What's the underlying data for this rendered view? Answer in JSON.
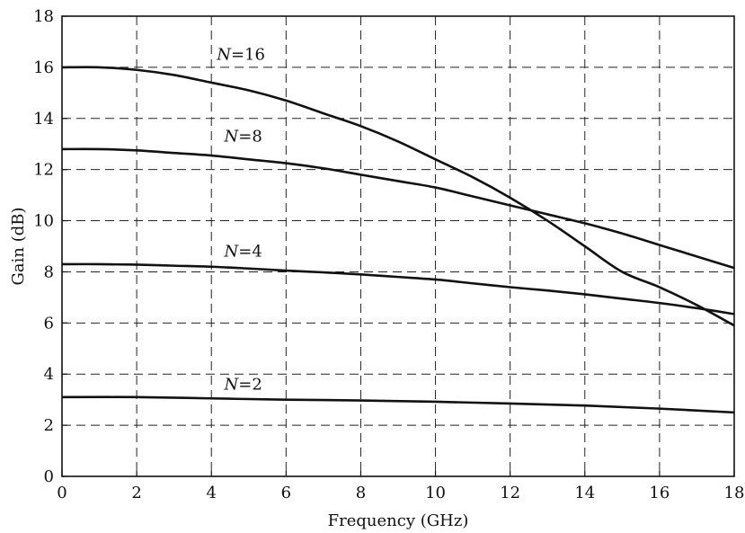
{
  "chart_data": {
    "type": "line",
    "xlabel": "Frequency (GHz)",
    "ylabel": "Gain (dB)",
    "xlim": [
      0,
      18
    ],
    "ylim": [
      0,
      18
    ],
    "xticks": [
      0,
      2,
      4,
      6,
      8,
      10,
      12,
      14,
      16,
      18
    ],
    "yticks": [
      0,
      2,
      4,
      6,
      8,
      10,
      12,
      14,
      16,
      18
    ],
    "grid": true,
    "grid_style": "dashed",
    "series": [
      {
        "label_italic": "N",
        "label_rest": "=16",
        "label_at": [
          4,
          16.3
        ],
        "x": [
          0,
          1,
          2,
          3,
          4,
          5,
          6,
          7,
          8,
          9,
          10,
          11,
          12,
          13,
          14,
          15,
          16,
          17,
          18
        ],
        "y": [
          16.0,
          16.0,
          15.9,
          15.7,
          15.4,
          15.1,
          14.7,
          14.2,
          13.7,
          13.1,
          12.4,
          11.7,
          10.9,
          10.0,
          9.0,
          8.0,
          7.4,
          6.7,
          5.9
        ]
      },
      {
        "label_italic": "N",
        "label_rest": "=8",
        "label_at": [
          4.2,
          13.1
        ],
        "x": [
          0,
          1,
          2,
          3,
          4,
          5,
          6,
          7,
          8,
          9,
          10,
          11,
          12,
          13,
          14,
          15,
          16,
          17,
          18
        ],
        "y": [
          12.8,
          12.8,
          12.75,
          12.65,
          12.55,
          12.4,
          12.25,
          12.05,
          11.8,
          11.55,
          11.3,
          10.95,
          10.6,
          10.25,
          9.9,
          9.5,
          9.05,
          8.6,
          8.15
        ]
      },
      {
        "label_italic": "N",
        "label_rest": "=4",
        "label_at": [
          4.2,
          8.6
        ],
        "x": [
          0,
          1,
          2,
          3,
          4,
          5,
          6,
          7,
          8,
          9,
          10,
          11,
          12,
          13,
          14,
          15,
          16,
          17,
          18
        ],
        "y": [
          8.3,
          8.3,
          8.28,
          8.24,
          8.2,
          8.13,
          8.05,
          7.98,
          7.9,
          7.8,
          7.7,
          7.55,
          7.4,
          7.27,
          7.12,
          6.95,
          6.78,
          6.58,
          6.35
        ]
      },
      {
        "label_italic": "N",
        "label_rest": "=2",
        "label_at": [
          4.2,
          3.4
        ],
        "x": [
          0,
          2,
          4,
          6,
          8,
          10,
          12,
          14,
          16,
          18
        ],
        "y": [
          3.1,
          3.1,
          3.05,
          3.0,
          2.97,
          2.92,
          2.85,
          2.77,
          2.65,
          2.5
        ]
      }
    ]
  }
}
